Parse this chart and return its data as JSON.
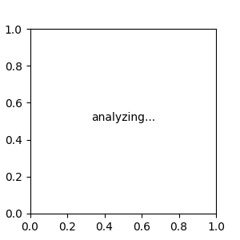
{
  "bg_color": "#e8e8e8",
  "bond_color": "#1a1a1a",
  "N_color": "#0000ff",
  "O_color": "#ff0000",
  "S_color": "#cccc00",
  "H_color": "#666666",
  "line_width": 1.5,
  "font_size": 9
}
